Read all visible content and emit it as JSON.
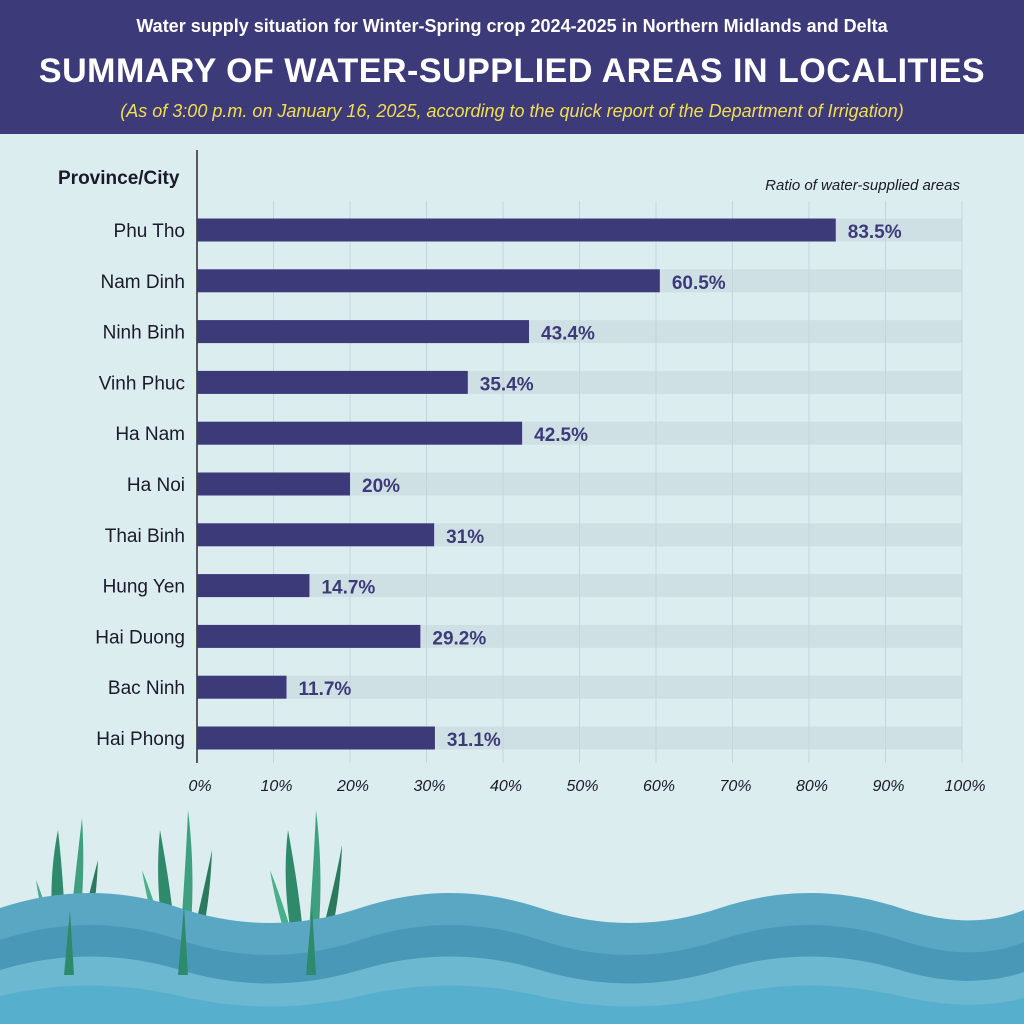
{
  "header": {
    "super_title": "Water supply situation for Winter-Spring crop 2024-2025 in Northern Midlands and Delta",
    "title": "SUMMARY OF WATER-SUPPLIED AREAS IN LOCALITIES",
    "note": "(As of 3:00 p.m. on January 16, 2025, according to the quick report of the Department of Irrigation)"
  },
  "colors": {
    "header_bg": "#3d3a7a",
    "bar": "#3d3a7a",
    "track": "#cfe0e4",
    "note_yellow": "#f3df4e",
    "background": "#dcedf0"
  },
  "chart_data": {
    "type": "bar",
    "orientation": "horizontal",
    "ylabel": "Province/City",
    "xlabel": "Ratio of water-supplied areas",
    "categories": [
      "Phu Tho",
      "Nam Dinh",
      "Ninh Binh",
      "Vinh Phuc",
      "Ha Nam",
      "Ha Noi",
      "Thai Binh",
      "Hung Yen",
      "Hai Duong",
      "Bac Ninh",
      "Hai Phong"
    ],
    "values": [
      83.5,
      60.5,
      43.4,
      35.4,
      42.5,
      20,
      31,
      14.7,
      29.2,
      11.7,
      31.1
    ],
    "value_labels": [
      "83.5%",
      "60.5%",
      "43.4%",
      "35.4%",
      "42.5%",
      "20%",
      "31%",
      "14.7%",
      "29.2%",
      "11.7%",
      "31.1%"
    ],
    "xlim": [
      0,
      100
    ],
    "xticks": [
      0,
      10,
      20,
      30,
      40,
      50,
      60,
      70,
      80,
      90,
      100
    ],
    "xtick_labels": [
      "0%",
      "10%",
      "20%",
      "30%",
      "40%",
      "50%",
      "60%",
      "70%",
      "80%",
      "90%",
      "100%"
    ],
    "grid": true
  }
}
